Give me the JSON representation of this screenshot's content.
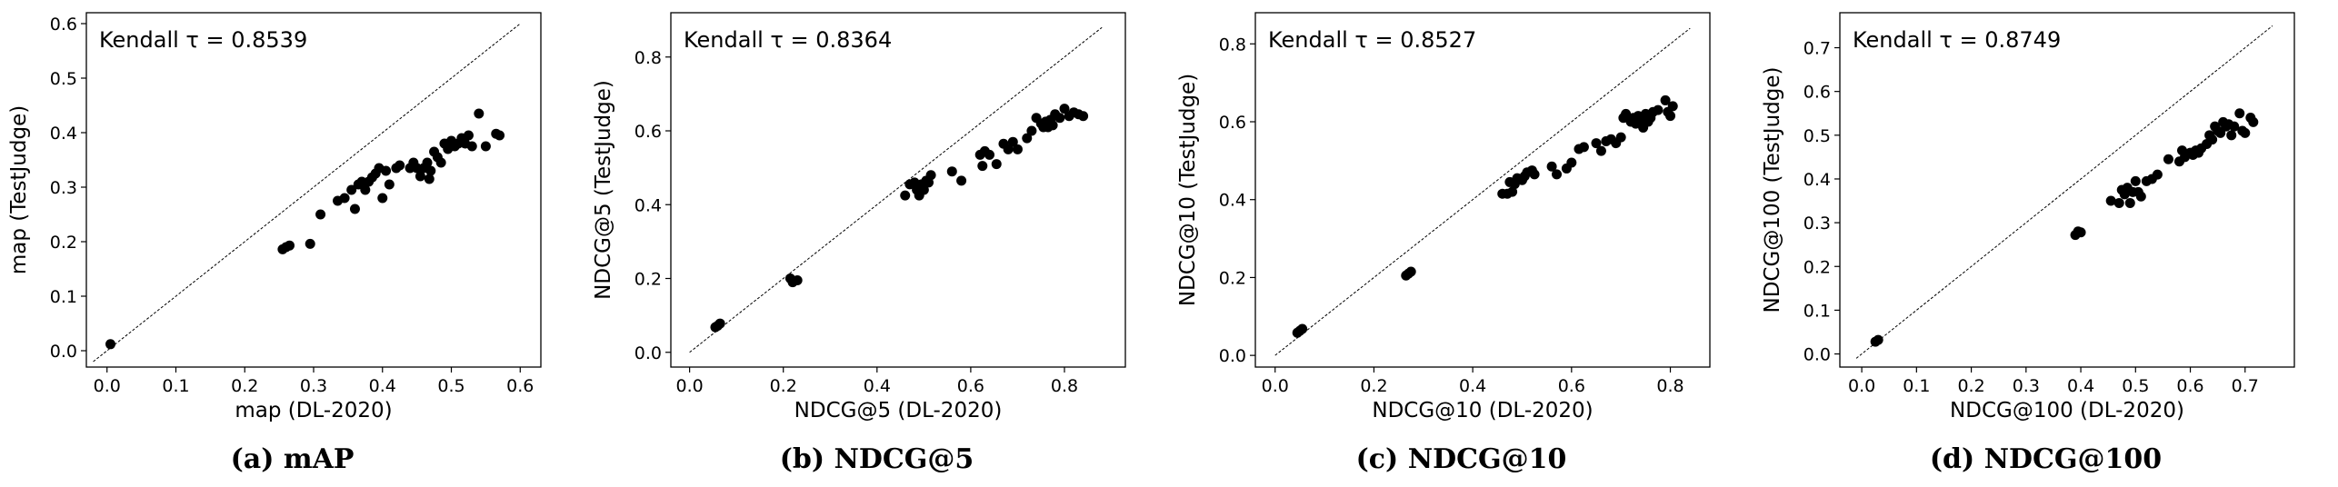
{
  "chart_data": [
    {
      "type": "scatter",
      "caption": "(a) mAP",
      "annotation": "Kendall τ = 0.8539",
      "xlabel": "map (DL-2020)",
      "ylabel": "map (TestJudge)",
      "xlim": [
        -0.03,
        0.63
      ],
      "ylim": [
        -0.03,
        0.62
      ],
      "xticks": [
        "0.0",
        "0.1",
        "0.2",
        "0.3",
        "0.4",
        "0.5",
        "0.6"
      ],
      "yticks": [
        "0.0",
        "0.1",
        "0.2",
        "0.3",
        "0.4",
        "0.5",
        "0.6"
      ],
      "diagonal": [
        -0.02,
        0.6
      ],
      "points": [
        [
          0.005,
          0.012
        ],
        [
          0.255,
          0.186
        ],
        [
          0.26,
          0.19
        ],
        [
          0.265,
          0.193
        ],
        [
          0.295,
          0.196
        ],
        [
          0.31,
          0.25
        ],
        [
          0.335,
          0.275
        ],
        [
          0.345,
          0.28
        ],
        [
          0.355,
          0.295
        ],
        [
          0.36,
          0.26
        ],
        [
          0.365,
          0.305
        ],
        [
          0.37,
          0.31
        ],
        [
          0.375,
          0.295
        ],
        [
          0.38,
          0.31
        ],
        [
          0.385,
          0.318
        ],
        [
          0.39,
          0.325
        ],
        [
          0.395,
          0.335
        ],
        [
          0.4,
          0.28
        ],
        [
          0.405,
          0.33
        ],
        [
          0.41,
          0.305
        ],
        [
          0.42,
          0.335
        ],
        [
          0.425,
          0.34
        ],
        [
          0.44,
          0.335
        ],
        [
          0.445,
          0.345
        ],
        [
          0.45,
          0.335
        ],
        [
          0.455,
          0.32
        ],
        [
          0.46,
          0.335
        ],
        [
          0.465,
          0.345
        ],
        [
          0.468,
          0.315
        ],
        [
          0.47,
          0.33
        ],
        [
          0.475,
          0.365
        ],
        [
          0.48,
          0.355
        ],
        [
          0.485,
          0.345
        ],
        [
          0.49,
          0.38
        ],
        [
          0.495,
          0.37
        ],
        [
          0.5,
          0.385
        ],
        [
          0.505,
          0.375
        ],
        [
          0.51,
          0.38
        ],
        [
          0.515,
          0.39
        ],
        [
          0.52,
          0.38
        ],
        [
          0.525,
          0.395
        ],
        [
          0.53,
          0.375
        ],
        [
          0.54,
          0.435
        ],
        [
          0.55,
          0.375
        ],
        [
          0.565,
          0.398
        ],
        [
          0.57,
          0.395
        ]
      ]
    },
    {
      "type": "scatter",
      "caption": "(b) NDCG@5",
      "annotation": "Kendall τ = 0.8364",
      "xlabel": "NDCG@5 (DL-2020)",
      "ylabel": "NDCG@5 (TestJudge)",
      "xlim": [
        -0.04,
        0.93
      ],
      "ylim": [
        -0.04,
        0.92
      ],
      "xticks": [
        "0.0",
        "0.2",
        "0.4",
        "0.6",
        "0.8"
      ],
      "yticks": [
        "0.0",
        "0.2",
        "0.4",
        "0.6",
        "0.8"
      ],
      "diagonal": [
        0.0,
        0.88
      ],
      "points": [
        [
          0.055,
          0.068
        ],
        [
          0.06,
          0.072
        ],
        [
          0.065,
          0.078
        ],
        [
          0.215,
          0.2
        ],
        [
          0.22,
          0.19
        ],
        [
          0.23,
          0.195
        ],
        [
          0.46,
          0.425
        ],
        [
          0.47,
          0.455
        ],
        [
          0.48,
          0.46
        ],
        [
          0.485,
          0.44
        ],
        [
          0.49,
          0.425
        ],
        [
          0.495,
          0.455
        ],
        [
          0.5,
          0.44
        ],
        [
          0.505,
          0.465
        ],
        [
          0.51,
          0.46
        ],
        [
          0.515,
          0.48
        ],
        [
          0.56,
          0.49
        ],
        [
          0.58,
          0.465
        ],
        [
          0.62,
          0.535
        ],
        [
          0.625,
          0.505
        ],
        [
          0.63,
          0.545
        ],
        [
          0.64,
          0.535
        ],
        [
          0.655,
          0.51
        ],
        [
          0.67,
          0.565
        ],
        [
          0.68,
          0.55
        ],
        [
          0.69,
          0.57
        ],
        [
          0.7,
          0.55
        ],
        [
          0.72,
          0.58
        ],
        [
          0.73,
          0.6
        ],
        [
          0.74,
          0.635
        ],
        [
          0.75,
          0.62
        ],
        [
          0.755,
          0.61
        ],
        [
          0.76,
          0.625
        ],
        [
          0.765,
          0.61
        ],
        [
          0.77,
          0.63
        ],
        [
          0.775,
          0.615
        ],
        [
          0.78,
          0.645
        ],
        [
          0.79,
          0.635
        ],
        [
          0.8,
          0.66
        ],
        [
          0.81,
          0.64
        ],
        [
          0.82,
          0.65
        ],
        [
          0.83,
          0.645
        ],
        [
          0.84,
          0.64
        ]
      ]
    },
    {
      "type": "scatter",
      "caption": "(c) NDCG@10",
      "annotation": "Kendall τ = 0.8527",
      "xlabel": "NDCG@10 (DL-2020)",
      "ylabel": "NDCG@10 (TestJudge)",
      "xlim": [
        -0.04,
        0.88
      ],
      "ylim": [
        -0.03,
        0.88
      ],
      "xticks": [
        "0.0",
        "0.2",
        "0.4",
        "0.6",
        "0.8"
      ],
      "yticks": [
        "0.0",
        "0.2",
        "0.4",
        "0.6",
        "0.8"
      ],
      "diagonal": [
        0.0,
        0.84
      ],
      "points": [
        [
          0.045,
          0.058
        ],
        [
          0.05,
          0.063
        ],
        [
          0.055,
          0.068
        ],
        [
          0.265,
          0.205
        ],
        [
          0.27,
          0.21
        ],
        [
          0.275,
          0.215
        ],
        [
          0.46,
          0.415
        ],
        [
          0.47,
          0.415
        ],
        [
          0.475,
          0.445
        ],
        [
          0.48,
          0.42
        ],
        [
          0.485,
          0.44
        ],
        [
          0.49,
          0.455
        ],
        [
          0.5,
          0.45
        ],
        [
          0.505,
          0.46
        ],
        [
          0.51,
          0.47
        ],
        [
          0.52,
          0.475
        ],
        [
          0.525,
          0.465
        ],
        [
          0.56,
          0.485
        ],
        [
          0.57,
          0.465
        ],
        [
          0.59,
          0.48
        ],
        [
          0.6,
          0.495
        ],
        [
          0.615,
          0.53
        ],
        [
          0.625,
          0.535
        ],
        [
          0.65,
          0.545
        ],
        [
          0.66,
          0.525
        ],
        [
          0.67,
          0.55
        ],
        [
          0.68,
          0.555
        ],
        [
          0.69,
          0.545
        ],
        [
          0.7,
          0.56
        ],
        [
          0.705,
          0.61
        ],
        [
          0.71,
          0.62
        ],
        [
          0.72,
          0.6
        ],
        [
          0.725,
          0.61
        ],
        [
          0.73,
          0.595
        ],
        [
          0.735,
          0.615
        ],
        [
          0.74,
          0.605
        ],
        [
          0.745,
          0.585
        ],
        [
          0.75,
          0.62
        ],
        [
          0.755,
          0.6
        ],
        [
          0.76,
          0.61
        ],
        [
          0.765,
          0.625
        ],
        [
          0.775,
          0.63
        ],
        [
          0.79,
          0.655
        ],
        [
          0.795,
          0.625
        ],
        [
          0.8,
          0.615
        ],
        [
          0.805,
          0.64
        ]
      ]
    },
    {
      "type": "scatter",
      "caption": "(d) NDCG@100",
      "annotation": "Kendall τ = 0.8749",
      "xlabel": "NDCG@100 (DL-2020)",
      "ylabel": "NDCG@100 (TestJudge)",
      "xlim": [
        -0.04,
        0.79
      ],
      "ylim": [
        -0.03,
        0.78
      ],
      "xticks": [
        "0.0",
        "0.1",
        "0.2",
        "0.3",
        "0.4",
        "0.5",
        "0.6",
        "0.7"
      ],
      "yticks": [
        "0.0",
        "0.1",
        "0.2",
        "0.3",
        "0.4",
        "0.5",
        "0.6",
        "0.7"
      ],
      "diagonal": [
        -0.01,
        0.75
      ],
      "points": [
        [
          0.025,
          0.028
        ],
        [
          0.03,
          0.032
        ],
        [
          0.39,
          0.272
        ],
        [
          0.395,
          0.28
        ],
        [
          0.4,
          0.278
        ],
        [
          0.455,
          0.35
        ],
        [
          0.47,
          0.345
        ],
        [
          0.475,
          0.375
        ],
        [
          0.48,
          0.365
        ],
        [
          0.485,
          0.38
        ],
        [
          0.49,
          0.345
        ],
        [
          0.495,
          0.37
        ],
        [
          0.5,
          0.395
        ],
        [
          0.505,
          0.37
        ],
        [
          0.51,
          0.36
        ],
        [
          0.52,
          0.395
        ],
        [
          0.53,
          0.4
        ],
        [
          0.54,
          0.41
        ],
        [
          0.56,
          0.445
        ],
        [
          0.58,
          0.44
        ],
        [
          0.585,
          0.465
        ],
        [
          0.59,
          0.45
        ],
        [
          0.6,
          0.46
        ],
        [
          0.605,
          0.455
        ],
        [
          0.61,
          0.465
        ],
        [
          0.615,
          0.46
        ],
        [
          0.62,
          0.47
        ],
        [
          0.63,
          0.48
        ],
        [
          0.635,
          0.5
        ],
        [
          0.64,
          0.49
        ],
        [
          0.645,
          0.52
        ],
        [
          0.65,
          0.51
        ],
        [
          0.655,
          0.505
        ],
        [
          0.66,
          0.53
        ],
        [
          0.665,
          0.52
        ],
        [
          0.67,
          0.525
        ],
        [
          0.675,
          0.5
        ],
        [
          0.68,
          0.52
        ],
        [
          0.69,
          0.55
        ],
        [
          0.695,
          0.51
        ],
        [
          0.7,
          0.505
        ],
        [
          0.71,
          0.54
        ],
        [
          0.715,
          0.53
        ]
      ]
    }
  ]
}
